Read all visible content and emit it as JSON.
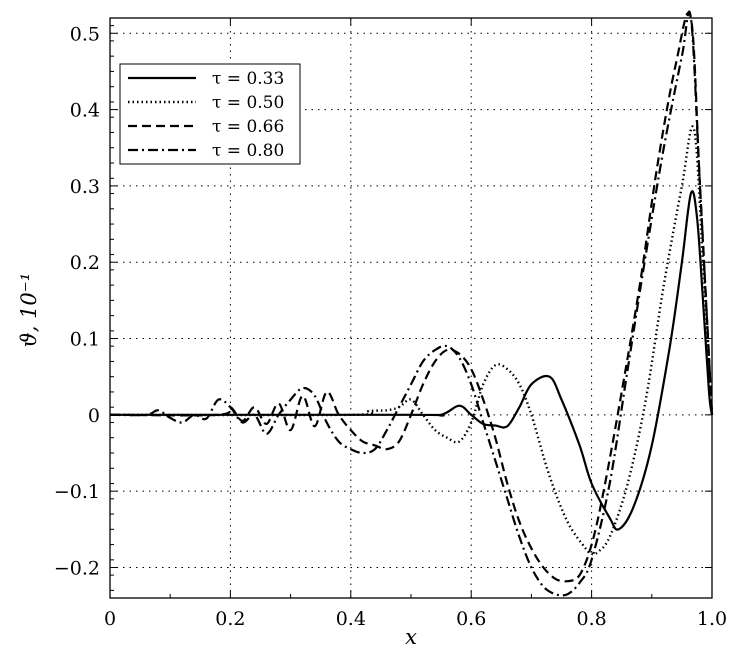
{
  "chart_data": {
    "type": "line",
    "title": "",
    "xlabel": "x",
    "ylabel": "ϑ, 10⁻¹",
    "xlim": [
      0,
      1.0
    ],
    "ylim": [
      -0.24,
      0.52
    ],
    "xticks": [
      0,
      0.2,
      0.4,
      0.6,
      0.8,
      1.0
    ],
    "xtick_labels": [
      "0",
      "0.2",
      "0.4",
      "0.6",
      "0.8",
      "1.0"
    ],
    "yticks": [
      -0.2,
      -0.1,
      0,
      0.1,
      0.2,
      0.3,
      0.4,
      0.5
    ],
    "ytick_labels": [
      "−0.2",
      "−0.1",
      "0",
      "0.1",
      "0.2",
      "0.3",
      "0.4",
      "0.5"
    ],
    "grid": true,
    "legend_position": "top-left",
    "series": [
      {
        "name": "τ = 0.33",
        "style": "solid",
        "x": [
          0,
          0.5,
          0.55,
          0.58,
          0.6,
          0.62,
          0.64,
          0.66,
          0.68,
          0.7,
          0.73,
          0.75,
          0.78,
          0.8,
          0.83,
          0.845,
          0.87,
          0.9,
          0.93,
          0.95,
          0.965,
          0.975,
          0.985,
          0.995,
          1.0
        ],
        "y": [
          0,
          0,
          0,
          0.012,
          0.0,
          -0.012,
          -0.014,
          -0.015,
          0.01,
          0.04,
          0.05,
          0.02,
          -0.04,
          -0.09,
          -0.135,
          -0.15,
          -0.12,
          -0.04,
          0.09,
          0.2,
          0.29,
          0.26,
          0.15,
          0.03,
          0
        ]
      },
      {
        "name": "τ = 0.50",
        "style": "dotted",
        "x": [
          0,
          0.4,
          0.43,
          0.46,
          0.48,
          0.5,
          0.52,
          0.54,
          0.56,
          0.58,
          0.6,
          0.62,
          0.64,
          0.66,
          0.68,
          0.7,
          0.73,
          0.76,
          0.79,
          0.8,
          0.81,
          0.83,
          0.86,
          0.89,
          0.92,
          0.95,
          0.97,
          0.985,
          1.0
        ],
        "y": [
          0,
          0,
          0.005,
          0.006,
          0.01,
          0.02,
          0.0,
          -0.02,
          -0.03,
          -0.035,
          -0.01,
          0.04,
          0.065,
          0.06,
          0.04,
          0.0,
          -0.08,
          -0.14,
          -0.175,
          -0.182,
          -0.18,
          -0.16,
          -0.09,
          0.02,
          0.17,
          0.3,
          0.375,
          0.2,
          0
        ]
      },
      {
        "name": "τ = 0.66",
        "style": "dashed",
        "x": [
          0,
          0.18,
          0.2,
          0.22,
          0.24,
          0.26,
          0.28,
          0.3,
          0.32,
          0.34,
          0.36,
          0.38,
          0.4,
          0.42,
          0.44,
          0.46,
          0.48,
          0.5,
          0.52,
          0.54,
          0.56,
          0.58,
          0.6,
          0.62,
          0.64,
          0.66,
          0.68,
          0.7,
          0.72,
          0.74,
          0.76,
          0.78,
          0.8,
          0.82,
          0.85,
          0.88,
          0.91,
          0.94,
          0.965,
          0.98,
          1.0
        ],
        "y": [
          0,
          0,
          0.01,
          -0.008,
          0.01,
          -0.012,
          0.015,
          -0.02,
          0.025,
          -0.015,
          0.03,
          0.0,
          -0.02,
          -0.035,
          -0.04,
          -0.045,
          -0.035,
          0.0,
          0.04,
          0.07,
          0.085,
          0.08,
          0.06,
          0.02,
          -0.03,
          -0.09,
          -0.14,
          -0.175,
          -0.2,
          -0.215,
          -0.218,
          -0.21,
          -0.17,
          -0.1,
          0.03,
          0.17,
          0.33,
          0.46,
          0.52,
          0.3,
          0
        ]
      },
      {
        "name": "τ = 0.80",
        "style": "dashdot",
        "x": [
          0,
          0.06,
          0.08,
          0.1,
          0.12,
          0.14,
          0.16,
          0.18,
          0.2,
          0.22,
          0.24,
          0.26,
          0.28,
          0.3,
          0.32,
          0.34,
          0.36,
          0.38,
          0.4,
          0.42,
          0.44,
          0.46,
          0.48,
          0.5,
          0.52,
          0.54,
          0.56,
          0.58,
          0.6,
          0.62,
          0.64,
          0.66,
          0.68,
          0.7,
          0.72,
          0.74,
          0.76,
          0.78,
          0.8,
          0.83,
          0.86,
          0.89,
          0.92,
          0.95,
          0.965,
          0.98,
          1.0
        ],
        "y": [
          0,
          0,
          0.006,
          -0.004,
          -0.01,
          0.0,
          -0.005,
          0.02,
          0.01,
          -0.01,
          0.0,
          -0.025,
          0.0,
          0.02,
          0.035,
          0.025,
          -0.01,
          -0.035,
          -0.045,
          -0.05,
          -0.045,
          -0.02,
          0.01,
          0.04,
          0.07,
          0.085,
          0.09,
          0.075,
          0.04,
          -0.01,
          -0.06,
          -0.11,
          -0.16,
          -0.2,
          -0.225,
          -0.235,
          -0.235,
          -0.22,
          -0.19,
          -0.09,
          0.06,
          0.21,
          0.35,
          0.47,
          0.52,
          0.3,
          0
        ]
      }
    ]
  }
}
